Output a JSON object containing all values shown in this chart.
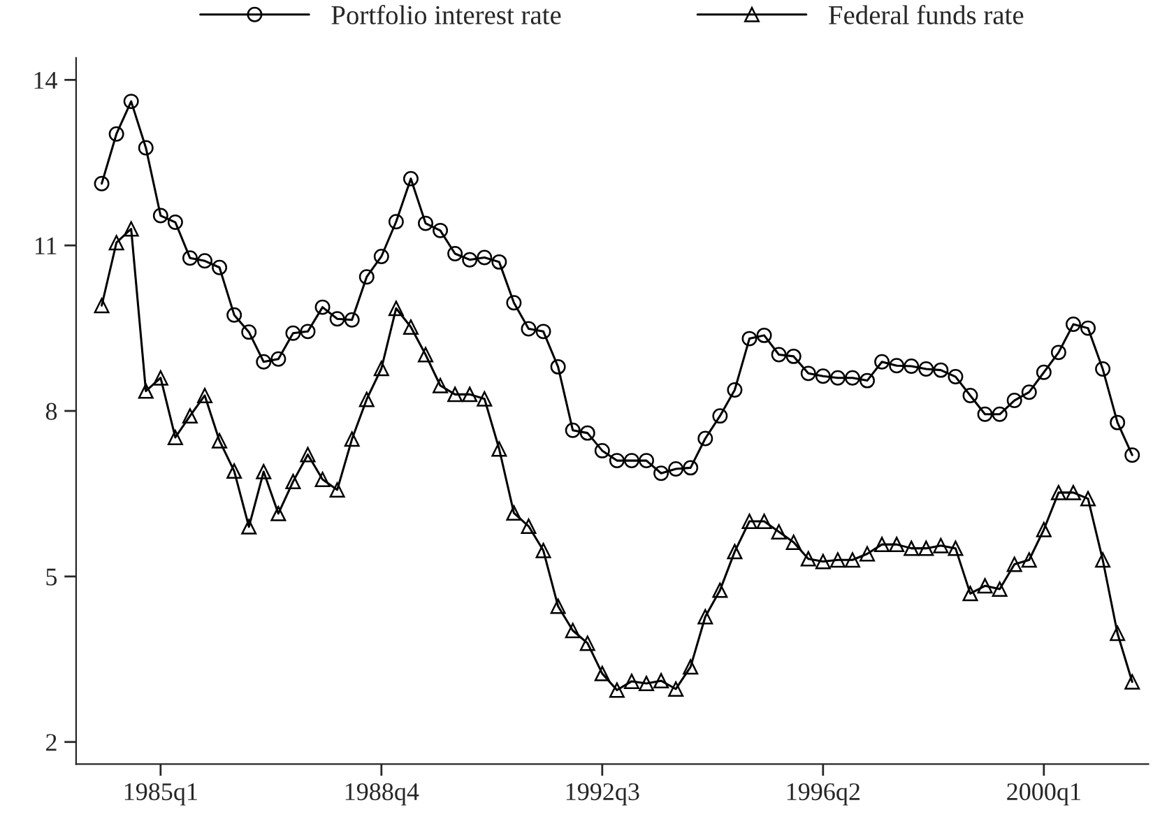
{
  "chart_data": {
    "type": "line",
    "categories": [
      null,
      null,
      null,
      null,
      "1985q1",
      null,
      null,
      null,
      null,
      null,
      null,
      null,
      null,
      null,
      null,
      null,
      null,
      null,
      null,
      "1988q4",
      null,
      null,
      null,
      null,
      null,
      null,
      null,
      null,
      null,
      null,
      null,
      null,
      null,
      null,
      "1992q3",
      null,
      null,
      null,
      null,
      null,
      null,
      null,
      null,
      null,
      null,
      null,
      null,
      null,
      null,
      "1996q2",
      null,
      null,
      null,
      null,
      null,
      null,
      null,
      null,
      null,
      null,
      null,
      null,
      null,
      null,
      "2000q1",
      null,
      null,
      null,
      null,
      null,
      null
    ],
    "series": [
      {
        "name": "Portfolio interest rate",
        "color": "#000000",
        "marker": "circle",
        "values": [
          12.12,
          13.02,
          13.61,
          12.77,
          11.54,
          11.42,
          10.77,
          10.72,
          10.6,
          9.74,
          9.43,
          8.89,
          8.94,
          9.41,
          9.44,
          9.88,
          9.67,
          9.65,
          10.43,
          10.8,
          11.43,
          12.21,
          11.4,
          11.27,
          10.85,
          10.74,
          10.78,
          10.7,
          9.96,
          9.49,
          9.44,
          8.8,
          7.65,
          7.6,
          7.28,
          7.1,
          7.1,
          7.1,
          6.87,
          6.95,
          6.97,
          7.5,
          7.91,
          8.38,
          9.31,
          9.37,
          9.02,
          8.99,
          8.68,
          8.63,
          8.6,
          8.6,
          8.55,
          8.89,
          8.82,
          8.81,
          8.76,
          8.74,
          8.62,
          8.28,
          7.94,
          7.94,
          8.19,
          8.34,
          8.7,
          9.06,
          9.57,
          9.5,
          8.76,
          7.79,
          7.2
        ]
      },
      {
        "name": "Federal funds rate",
        "color": "#000000",
        "marker": "triangle",
        "values": [
          9.91,
          11.05,
          11.3,
          8.36,
          8.6,
          7.52,
          7.91,
          8.28,
          7.46,
          6.91,
          5.9,
          6.9,
          6.14,
          6.72,
          7.21,
          6.76,
          6.57,
          7.49,
          8.21,
          8.77,
          9.86,
          9.52,
          9.02,
          8.46,
          8.3,
          8.3,
          8.22,
          7.31,
          6.15,
          5.91,
          5.47,
          4.46,
          4.02,
          3.79,
          3.24,
          2.94,
          3.1,
          3.06,
          3.11,
          2.96,
          3.36,
          4.27,
          4.75,
          5.45,
          6.0,
          6.0,
          5.81,
          5.62,
          5.32,
          5.27,
          5.3,
          5.3,
          5.41,
          5.58,
          5.58,
          5.51,
          5.51,
          5.56,
          5.51,
          4.69,
          4.83,
          4.77,
          5.22,
          5.3,
          5.85,
          6.52,
          6.52,
          6.41,
          5.3,
          3.97,
          3.09
        ]
      }
    ],
    "ylim": [
      1.6,
      14.4
    ],
    "yticks": [
      2,
      5,
      8,
      11,
      14
    ],
    "grid": false,
    "legend": "top",
    "line_style": "solid"
  }
}
